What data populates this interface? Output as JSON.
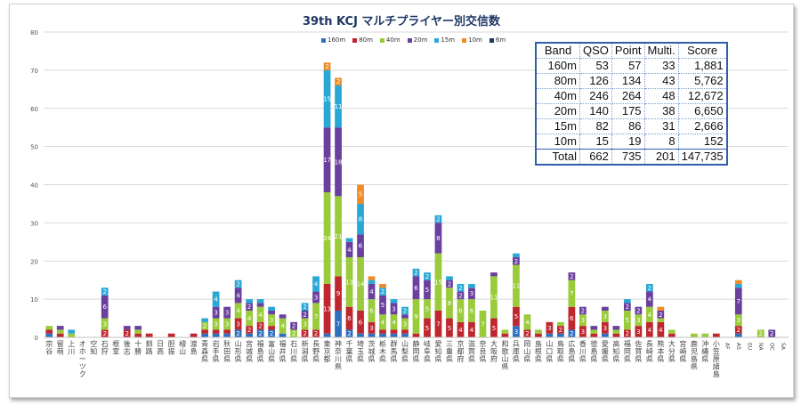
{
  "chart_data": {
    "type": "bar",
    "stacked": true,
    "title": "39th KCJ マルチプライヤー別交信数",
    "ylim": [
      0,
      80
    ],
    "yticks": [
      0,
      10,
      20,
      30,
      40,
      50,
      60,
      70,
      80
    ],
    "grid": true,
    "legend_position": "top-center",
    "series": [
      {
        "name": "160m",
        "color": "#2e6fc0"
      },
      {
        "name": "80m",
        "color": "#c0262d"
      },
      {
        "name": "40m",
        "color": "#9acb3a"
      },
      {
        "name": "20m",
        "color": "#6a3f9e"
      },
      {
        "name": "15m",
        "color": "#29a8d6"
      },
      {
        "name": "10m",
        "color": "#f08a24"
      },
      {
        "name": "6m",
        "color": "#1f3864"
      }
    ],
    "categories": [
      "宗谷",
      "留萌",
      "上川",
      "オホーツク",
      "空知",
      "石狩",
      "根室",
      "後志",
      "十勝",
      "釧路",
      "日高",
      "胆振",
      "檜山",
      "渡島",
      "青森県",
      "岩手県",
      "秋田県",
      "山形県",
      "宮城県",
      "福島県",
      "富山県",
      "福井県",
      "石川県",
      "新潟県",
      "長野県",
      "東京都",
      "神奈川県",
      "千葉県",
      "埼玉県",
      "茨城県",
      "栃木県",
      "群馬県",
      "山梨県",
      "静岡県",
      "岐阜県",
      "愛知県",
      "三重県",
      "京都府",
      "滋賀県",
      "奈良県",
      "大阪府",
      "和歌山県",
      "兵庫県",
      "岡山県",
      "島根県",
      "山口県",
      "鳥取県",
      "広島県",
      "香川県",
      "徳島県",
      "愛媛県",
      "高知県",
      "福岡県",
      "佐賀県",
      "長崎県",
      "熊本県",
      "大分県",
      "宮崎県",
      "鹿児島県",
      "沖縄県",
      "小笠原諸島",
      "AF",
      "AS",
      "EU",
      "NA",
      "OC",
      "SA"
    ],
    "stacks": [
      [
        1,
        1,
        1,
        0,
        0,
        0,
        0
      ],
      [
        0,
        1,
        1,
        1,
        0,
        0,
        0
      ],
      [
        0,
        0,
        1,
        0,
        1,
        0,
        0
      ],
      [
        0,
        0,
        0,
        0,
        0,
        0,
        0
      ],
      [
        0,
        0,
        0,
        0,
        0,
        0,
        0
      ],
      [
        0,
        2,
        3,
        6,
        2,
        0,
        0
      ],
      [
        0,
        0,
        0,
        0,
        0,
        0,
        0
      ],
      [
        0,
        2,
        0,
        1,
        0,
        0,
        0
      ],
      [
        0,
        1,
        1,
        1,
        0,
        0,
        0
      ],
      [
        0,
        1,
        0,
        0,
        0,
        0,
        0
      ],
      [
        0,
        0,
        0,
        0,
        0,
        0,
        0
      ],
      [
        0,
        1,
        0,
        0,
        0,
        0,
        0
      ],
      [
        0,
        0,
        0,
        0,
        0,
        0,
        0
      ],
      [
        0,
        1,
        0,
        0,
        0,
        0,
        0
      ],
      [
        1,
        1,
        2,
        0,
        1,
        0,
        0
      ],
      [
        1,
        1,
        3,
        3,
        4,
        0,
        0
      ],
      [
        1,
        1,
        3,
        3,
        0,
        0,
        0
      ],
      [
        2,
        3,
        4,
        4,
        2,
        0,
        0
      ],
      [
        1,
        2,
        4,
        2,
        1,
        0,
        0
      ],
      [
        2,
        2,
        4,
        1,
        1,
        0,
        0
      ],
      [
        2,
        1,
        3,
        1,
        1,
        0,
        0
      ],
      [
        1,
        0,
        4,
        1,
        0,
        0,
        0
      ],
      [
        0,
        0,
        2,
        2,
        0,
        0,
        0
      ],
      [
        0,
        2,
        3,
        2,
        2,
        0,
        0
      ],
      [
        0,
        2,
        7,
        3,
        4,
        0,
        0
      ],
      [
        1,
        13,
        24,
        17,
        15,
        2,
        0
      ],
      [
        7,
        9,
        21,
        18,
        11,
        2,
        0
      ],
      [
        2,
        6,
        13,
        4,
        1,
        0,
        0
      ],
      [
        1,
        6,
        14,
        6,
        8,
        5,
        0
      ],
      [
        1,
        3,
        6,
        4,
        1,
        1,
        0
      ],
      [
        1,
        1,
        4,
        5,
        2,
        1,
        0
      ],
      [
        1,
        1,
        4,
        3,
        1,
        0,
        0
      ],
      [
        1,
        1,
        3,
        1,
        2,
        0,
        0
      ],
      [
        0,
        1,
        9,
        6,
        2,
        0,
        0
      ],
      [
        0,
        5,
        5,
        5,
        2,
        0,
        0
      ],
      [
        0,
        7,
        15,
        8,
        2,
        0,
        0
      ],
      [
        0,
        5,
        8,
        2,
        1,
        0,
        0
      ],
      [
        0,
        4,
        6,
        2,
        2,
        0,
        0
      ],
      [
        0,
        4,
        6,
        3,
        1,
        0,
        0
      ],
      [
        0,
        0,
        7,
        0,
        0,
        0,
        0
      ],
      [
        0,
        5,
        11,
        1,
        0,
        0,
        0
      ],
      [
        0,
        1,
        1,
        0,
        0,
        0,
        0
      ],
      [
        3,
        5,
        11,
        2,
        1,
        0,
        0
      ],
      [
        0,
        2,
        4,
        0,
        0,
        0,
        0
      ],
      [
        0,
        1,
        1,
        0,
        0,
        0,
        0
      ],
      [
        1,
        3,
        0,
        0,
        0,
        0,
        0
      ],
      [
        1,
        2,
        1,
        0,
        0,
        0,
        0
      ],
      [
        2,
        6,
        7,
        2,
        0,
        0,
        0
      ],
      [
        0,
        3,
        3,
        2,
        0,
        0,
        0
      ],
      [
        0,
        1,
        1,
        1,
        0,
        0,
        0
      ],
      [
        1,
        3,
        3,
        1,
        0,
        0,
        0
      ],
      [
        0,
        1,
        1,
        1,
        0,
        0,
        0
      ],
      [
        0,
        2,
        5,
        2,
        1,
        0,
        0
      ],
      [
        0,
        3,
        3,
        2,
        0,
        0,
        0
      ],
      [
        0,
        4,
        4,
        4,
        2,
        0,
        0
      ],
      [
        0,
        4,
        1,
        2,
        0,
        1,
        0
      ],
      [
        0,
        1,
        1,
        0,
        0,
        0,
        0
      ],
      [
        0,
        0,
        0,
        0,
        0,
        0,
        0
      ],
      [
        0,
        0,
        1,
        0,
        0,
        0,
        0
      ],
      [
        0,
        0,
        1,
        0,
        0,
        0,
        0
      ],
      [
        0,
        1,
        0,
        0,
        0,
        0,
        0
      ],
      [
        0,
        0,
        0,
        0,
        0,
        0,
        0
      ],
      [
        1,
        2,
        3,
        7,
        1,
        1,
        0
      ],
      [
        0,
        0,
        0,
        0,
        0,
        0,
        0
      ],
      [
        0,
        0,
        2,
        0,
        0,
        0,
        0
      ],
      [
        0,
        0,
        0,
        2,
        0,
        0,
        0
      ],
      [
        0,
        0,
        0,
        0,
        0,
        0,
        0
      ]
    ]
  },
  "table": {
    "headers": [
      "Band",
      "QSO",
      "Point",
      "Multi.",
      "Score"
    ],
    "rows": [
      {
        "band": "160m",
        "qso": "53",
        "point": "57",
        "multi": "33",
        "score": "1,881"
      },
      {
        "band": "80m",
        "qso": "126",
        "point": "134",
        "multi": "43",
        "score": "5,762"
      },
      {
        "band": "40m",
        "qso": "246",
        "point": "264",
        "multi": "48",
        "score": "12,672"
      },
      {
        "band": "20m",
        "qso": "140",
        "point": "175",
        "multi": "38",
        "score": "6,650"
      },
      {
        "band": "15m",
        "qso": "82",
        "point": "86",
        "multi": "31",
        "score": "2,666"
      },
      {
        "band": "10m",
        "qso": "15",
        "point": "19",
        "multi": "8",
        "score": "152"
      }
    ],
    "total": {
      "band": "Total",
      "qso": "662",
      "point": "735",
      "multi": "201",
      "score": "147,735"
    }
  }
}
